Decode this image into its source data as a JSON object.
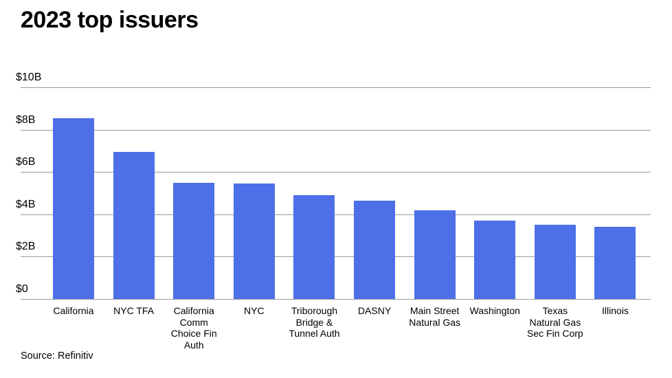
{
  "title": "2023 top issuers",
  "source": "Source: Refinitiv",
  "colors": {
    "bar": "#4d6fe8",
    "gridline": "#9a9a9a",
    "text": "#000000",
    "background": "#ffffff"
  },
  "chart_data": {
    "type": "bar",
    "title": "2023 top issuers",
    "categories": [
      "California",
      "NYC TFA",
      "California\nComm\nChoice Fin\nAuth",
      "NYC",
      "Triborough\nBridge &\nTunnel Auth",
      "DASNY",
      "Main Street\nNatural Gas",
      "Washington",
      "Texas\nNatural Gas\nSec Fin Corp",
      "Illinois"
    ],
    "categories_full": [
      "California",
      "NYC TFA",
      "California Comm Choice Fin Auth",
      "NYC",
      "Triborough Bridge & Tunnel Auth",
      "DASNY",
      "Main Street Natural Gas",
      "Washington",
      "Texas Natural Gas Sec Fin Corp",
      "Illinois"
    ],
    "values": [
      8.55,
      6.95,
      5.5,
      5.45,
      4.9,
      4.65,
      4.2,
      3.7,
      3.5,
      3.4
    ],
    "xlabel": "",
    "ylabel": "",
    "ylim": [
      0,
      10
    ],
    "yticks": [
      0,
      2,
      4,
      6,
      8,
      10
    ],
    "ytick_labels": [
      "$0",
      "$2B",
      "$4B",
      "$6B",
      "$8B",
      "$10B"
    ],
    "grid": true,
    "legend": false,
    "source": "Source: Refinitiv"
  }
}
